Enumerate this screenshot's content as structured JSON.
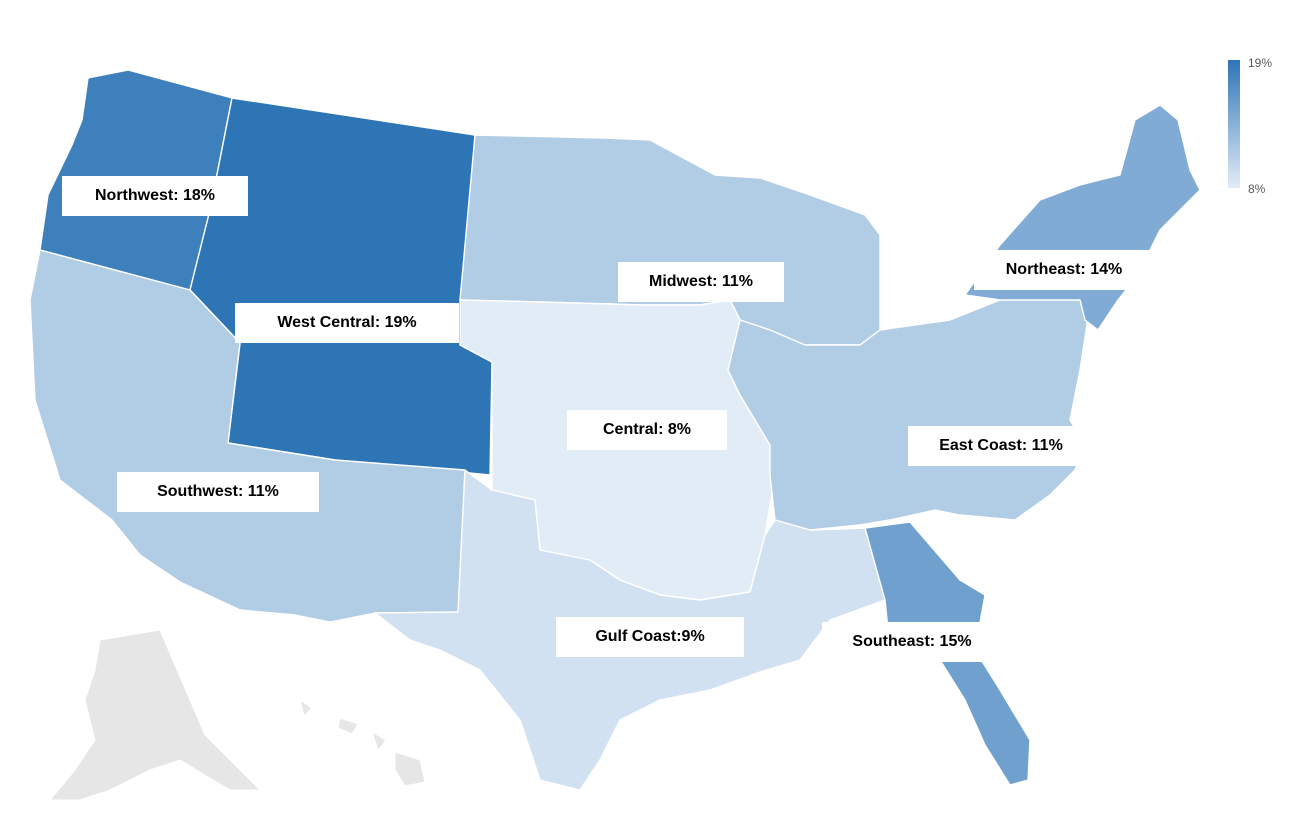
{
  "chart_data": {
    "type": "choropleth",
    "color_scale": {
      "min_label": "8%",
      "max_label": "19%",
      "min": 8,
      "max": 19,
      "low_color": "#e2ecf7",
      "high_color": "#2e75b6"
    },
    "regions": [
      {
        "id": "northwest",
        "label": "Northwest: 18%",
        "value": 18
      },
      {
        "id": "west-central",
        "label": "West Central: 19%",
        "value": 19
      },
      {
        "id": "midwest",
        "label": "Midwest: 11%",
        "value": 11
      },
      {
        "id": "northeast",
        "label": "Northeast: 14%",
        "value": 14
      },
      {
        "id": "central",
        "label": "Central: 8%",
        "value": 8
      },
      {
        "id": "east-coast",
        "label": "East Coast: 11%",
        "value": 11
      },
      {
        "id": "southwest",
        "label": "Southwest: 11%",
        "value": 11
      },
      {
        "id": "gulf-coast",
        "label": "Gulf Coast:9%",
        "value": 9
      },
      {
        "id": "southeast",
        "label": "Southeast: 15%",
        "value": 15
      }
    ],
    "no_data_color": "#e6e6e6"
  }
}
